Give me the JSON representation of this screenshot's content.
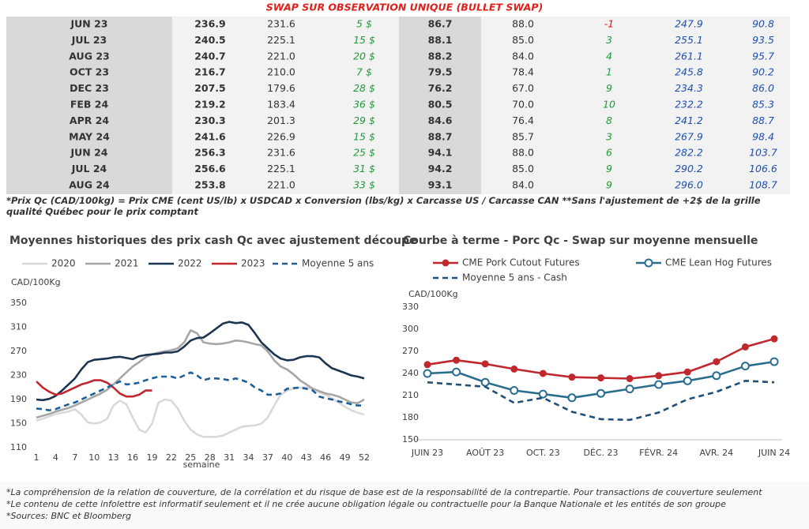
{
  "table": {
    "title": "SWAP SUR OBSERVATION UNIQUE (BULLET SWAP)",
    "rows": [
      [
        "JUN 23",
        "236.9",
        "231.6",
        "5 $",
        "86.7",
        "88.0",
        "-1",
        "247.9",
        "90.8"
      ],
      [
        "JUL 23",
        "240.5",
        "225.1",
        "15 $",
        "88.1",
        "85.0",
        "3",
        "255.1",
        "93.5"
      ],
      [
        "AUG 23",
        "240.7",
        "221.0",
        "20 $",
        "88.2",
        "84.0",
        "4",
        "261.1",
        "95.7"
      ],
      [
        "OCT 23",
        "216.7",
        "210.0",
        "7 $",
        "79.5",
        "78.4",
        "1",
        "245.8",
        "90.2"
      ],
      [
        "DEC 23",
        "207.5",
        "179.6",
        "28 $",
        "76.2",
        "67.0",
        "9",
        "234.3",
        "86.0"
      ],
      [
        "FEB 24",
        "219.2",
        "183.4",
        "36 $",
        "80.5",
        "70.0",
        "10",
        "232.2",
        "85.3"
      ],
      [
        "APR 24",
        "230.3",
        "201.3",
        "29 $",
        "84.6",
        "76.4",
        "8",
        "241.2",
        "88.7"
      ],
      [
        "MAY 24",
        "241.6",
        "226.9",
        "15 $",
        "88.7",
        "85.7",
        "3",
        "267.9",
        "98.4"
      ],
      [
        "JUN 24",
        "256.3",
        "231.6",
        "25 $",
        "94.1",
        "88.0",
        "6",
        "282.2",
        "103.7"
      ],
      [
        "JUL 24",
        "256.6",
        "225.1",
        "31 $",
        "94.2",
        "85.0",
        "9",
        "290.2",
        "106.6"
      ],
      [
        "AUG 24",
        "253.8",
        "221.0",
        "33 $",
        "93.1",
        "84.0",
        "9",
        "296.0",
        "108.7"
      ]
    ]
  },
  "note": "*Prix Qc (CAD/100kg) = Prix CME (cent US/lb) x USDCAD x Conversion (lbs/kg) x Carcasse US / Carcasse CAN **Sans l'ajustement de +2$ de la grille qualité Québec pour le prix comptant",
  "chart_data": [
    {
      "type": "line",
      "title": "Moyennes historiques des prix cash Qc avec ajustement découpe",
      "y_label": "CAD/100Kg",
      "x_label": "semaine",
      "legend": "top",
      "grid": false,
      "x": [
        1,
        2,
        3,
        4,
        5,
        6,
        7,
        8,
        9,
        10,
        11,
        12,
        13,
        14,
        15,
        16,
        17,
        18,
        19,
        20,
        21,
        22,
        23,
        24,
        25,
        26,
        27,
        28,
        29,
        30,
        31,
        32,
        33,
        34,
        35,
        36,
        37,
        38,
        39,
        40,
        41,
        42,
        43,
        44,
        45,
        46,
        47,
        48,
        49,
        50,
        51,
        52
      ],
      "xlim": [
        1,
        52
      ],
      "xticks": [
        1,
        4,
        7,
        10,
        13,
        16,
        19,
        22,
        25,
        28,
        31,
        34,
        37,
        40,
        43,
        46,
        49,
        52
      ],
      "ylim": [
        110,
        350
      ],
      "yticks": [
        110,
        150,
        190,
        230,
        270,
        310,
        350
      ],
      "series": [
        {
          "name": "2020",
          "color": "#d9d9d9",
          "values": [
            155,
            158,
            162,
            166,
            168,
            170,
            174,
            165,
            152,
            150,
            152,
            158,
            180,
            188,
            182,
            160,
            140,
            135,
            150,
            185,
            190,
            188,
            175,
            155,
            140,
            132,
            128,
            128,
            128,
            130,
            135,
            140,
            145,
            146,
            147,
            150,
            160,
            180,
            198,
            205,
            208,
            210,
            210,
            208,
            202,
            198,
            192,
            185,
            178,
            172,
            168,
            165
          ]
        },
        {
          "name": "2021",
          "color": "#a6a6a6",
          "values": [
            160,
            163,
            166,
            170,
            173,
            176,
            180,
            185,
            190,
            195,
            200,
            206,
            215,
            225,
            235,
            245,
            252,
            260,
            265,
            268,
            270,
            272,
            275,
            285,
            305,
            300,
            285,
            283,
            282,
            283,
            285,
            288,
            287,
            285,
            282,
            280,
            270,
            255,
            245,
            240,
            232,
            222,
            215,
            208,
            204,
            200,
            198,
            195,
            190,
            185,
            184,
            190
          ]
        },
        {
          "name": "2022",
          "color": "#1b3550",
          "values": [
            190,
            189,
            191,
            196,
            205,
            215,
            225,
            240,
            252,
            256,
            257,
            258,
            260,
            261,
            259,
            257,
            262,
            264,
            265,
            266,
            268,
            268,
            270,
            278,
            288,
            292,
            293,
            300,
            308,
            316,
            319,
            317,
            318,
            314,
            300,
            285,
            275,
            265,
            258,
            255,
            256,
            260,
            262,
            262,
            260,
            250,
            242,
            238,
            234,
            230,
            228,
            225
          ]
        },
        {
          "name": "2023",
          "color": "#c0282d",
          "values": [
            220,
            210,
            203,
            198,
            200,
            205,
            210,
            215,
            218,
            222,
            222,
            218,
            210,
            200,
            195,
            195,
            198,
            205,
            205,
            null,
            null,
            null,
            null,
            null,
            null,
            null,
            null,
            null,
            null,
            null,
            null,
            null,
            null,
            null,
            null,
            null,
            null,
            null,
            null,
            null,
            null,
            null,
            null,
            null,
            null,
            null,
            null,
            null,
            null,
            null,
            null,
            null
          ]
        },
        {
          "name": "Moyenne 5 ans",
          "color": "#1f5f99",
          "line_style": "dashed",
          "values": [
            175,
            174,
            172,
            174,
            178,
            182,
            185,
            190,
            195,
            200,
            205,
            210,
            215,
            220,
            215,
            216,
            218,
            222,
            225,
            228,
            228,
            228,
            225,
            230,
            235,
            230,
            222,
            225,
            225,
            224,
            222,
            225,
            222,
            218,
            210,
            205,
            198,
            198,
            200,
            208,
            209,
            210,
            208,
            205,
            195,
            192,
            190,
            187,
            185,
            182,
            180,
            180
          ]
        }
      ]
    },
    {
      "type": "line",
      "title": "Courbe à terme - Porc Qc - Swap sur moyenne mensuelle",
      "y_label": "CAD/100Kg",
      "legend": "top",
      "grid": false,
      "categories": [
        "JUIN 23",
        null,
        "AOÛT 23",
        null,
        "OCT. 23",
        null,
        "DÉC. 23",
        null,
        "FÉVR. 24",
        null,
        "AVR. 24",
        null,
        "JUIN 24"
      ],
      "ylim": [
        150,
        330
      ],
      "yticks": [
        150,
        180,
        210,
        240,
        270,
        300,
        330
      ],
      "series": [
        {
          "name": "CME Pork Cutout Futures",
          "color": "#c0282d",
          "marker": "filled-circle",
          "values": [
            252,
            258,
            253,
            246,
            240,
            235,
            234,
            233,
            237,
            242,
            256,
            276,
            287
          ]
        },
        {
          "name": "CME Lean Hog Futures",
          "color": "#2a6e8f",
          "marker": "open-circle",
          "values": [
            240,
            242,
            228,
            217,
            212,
            207,
            213,
            219,
            225,
            230,
            237,
            250,
            256
          ]
        },
        {
          "name": "Moyenne 5 ans - Cash",
          "color": "#1f4e79",
          "line_style": "dashed",
          "values": [
            228,
            225,
            222,
            200,
            207,
            188,
            178,
            177,
            187,
            205,
            215,
            230,
            228
          ]
        }
      ]
    }
  ],
  "footnotes": [
    "*La compréhension de la relation de couverture, de la corrélation et du risque de base est de la responsabilité de la contrepartie. Pour transactions de couverture seulement",
    "*Le contenu de cette infolettre est informatif seulement et il ne crée aucune obligation légale ou contractuelle pour la Banque Nationale et les entités de son groupe",
    "*Sources: BNC et Bloomberg"
  ]
}
